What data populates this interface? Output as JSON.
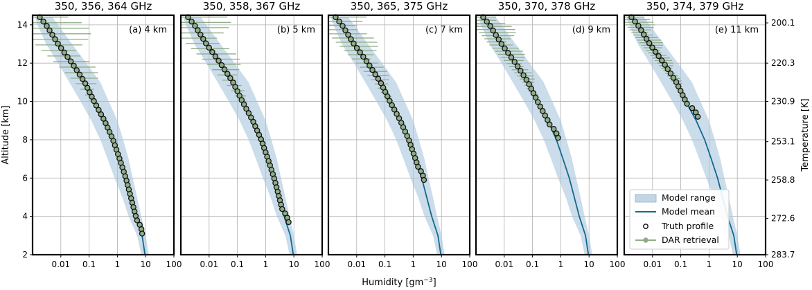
{
  "figure": {
    "ylabel_left": "Altitude [km]",
    "ylabel_right": "Temperature [K]",
    "xlabel": "Humidity [gm",
    "xlabel_sup": "−3",
    "xlabel_end": "]"
  },
  "chart_data": {
    "type": "line",
    "xscale": "log",
    "xlim": [
      0.001,
      100
    ],
    "ylim": [
      2,
      14.5
    ],
    "x_ticks": [
      "0.01",
      "0.1",
      "1",
      "10",
      "100"
    ],
    "y_ticks": [
      "2",
      "4",
      "6",
      "8",
      "10",
      "12",
      "14"
    ],
    "right_ticks": [
      {
        "alt": 14.1,
        "label": "200.1"
      },
      {
        "alt": 12.0,
        "label": "220.3"
      },
      {
        "alt": 10.0,
        "label": "230.9"
      },
      {
        "alt": 7.9,
        "label": "253.1"
      },
      {
        "alt": 5.9,
        "label": "258.8"
      },
      {
        "alt": 3.9,
        "label": "272.6"
      },
      {
        "alt": 2.0,
        "label": "283.7"
      }
    ],
    "grid": true,
    "legend_position": "bottom-right of panel (e)",
    "legend": [
      {
        "label": "Model range",
        "color": "#a9c4dc"
      },
      {
        "label": "Model mean",
        "color": "#11698e"
      },
      {
        "label": "Truth profile",
        "color": "#000000"
      },
      {
        "label": "DAR retrieval",
        "color": "#8fad88"
      }
    ],
    "panels": [
      {
        "title": "350, 356, 364 GHz",
        "tag": "(a) 4 km",
        "top_altitude": 14.4,
        "truth_bottom_altitude": 3.1,
        "truth_bottom_humidity": 7.5
      },
      {
        "title": "350, 358, 367 GHz",
        "tag": "(b) 5 km",
        "top_altitude": 14.4,
        "truth_bottom_altitude": 3.7,
        "truth_bottom_humidity": 6.5
      },
      {
        "title": "350, 365, 375 GHz",
        "tag": "(c) 7 km",
        "top_altitude": 14.4,
        "truth_bottom_altitude": 5.9,
        "truth_bottom_humidity": 2.4
      },
      {
        "title": "350, 370, 378 GHz",
        "tag": "(d) 9 km",
        "top_altitude": 14.4,
        "truth_bottom_altitude": 8.1,
        "truth_bottom_humidity": 0.8
      },
      {
        "title": "350, 374, 379 GHz",
        "tag": "(e) 11 km",
        "top_altitude": 14.4,
        "truth_bottom_altitude": 9.2,
        "truth_bottom_humidity": 0.4
      }
    ],
    "model_mean": [
      {
        "alt": 2.0,
        "x": 9.5
      },
      {
        "alt": 3.0,
        "x": 7.5
      },
      {
        "alt": 4.0,
        "x": 4.5
      },
      {
        "alt": 5.0,
        "x": 3.0
      },
      {
        "alt": 6.0,
        "x": 2.0
      },
      {
        "alt": 7.0,
        "x": 1.2
      },
      {
        "alt": 8.0,
        "x": 0.7
      },
      {
        "alt": 9.0,
        "x": 0.35
      },
      {
        "alt": 10.0,
        "x": 0.15
      },
      {
        "alt": 11.0,
        "x": 0.07
      },
      {
        "alt": 12.0,
        "x": 0.025
      },
      {
        "alt": 13.0,
        "x": 0.008
      },
      {
        "alt": 14.0,
        "x": 0.003
      },
      {
        "alt": 14.4,
        "x": 0.0018
      }
    ],
    "model_range": [
      {
        "alt": 2.0,
        "lo": 7.0,
        "hi": 13.0
      },
      {
        "alt": 3.0,
        "lo": 5.0,
        "hi": 10.0
      },
      {
        "alt": 4.0,
        "lo": 2.5,
        "hi": 7.0
      },
      {
        "alt": 5.0,
        "lo": 1.5,
        "hi": 5.0
      },
      {
        "alt": 6.0,
        "lo": 0.8,
        "hi": 3.5
      },
      {
        "alt": 7.0,
        "lo": 0.45,
        "hi": 2.5
      },
      {
        "alt": 8.0,
        "lo": 0.25,
        "hi": 1.6
      },
      {
        "alt": 9.0,
        "lo": 0.12,
        "hi": 1.0
      },
      {
        "alt": 10.0,
        "lo": 0.05,
        "hi": 0.5
      },
      {
        "alt": 11.0,
        "lo": 0.02,
        "hi": 0.25
      },
      {
        "alt": 12.0,
        "lo": 0.008,
        "hi": 0.08
      },
      {
        "alt": 13.0,
        "lo": 0.003,
        "hi": 0.025
      },
      {
        "alt": 14.0,
        "lo": 0.0015,
        "hi": 0.008
      },
      {
        "alt": 14.4,
        "lo": 0.0012,
        "hi": 0.005
      }
    ]
  }
}
